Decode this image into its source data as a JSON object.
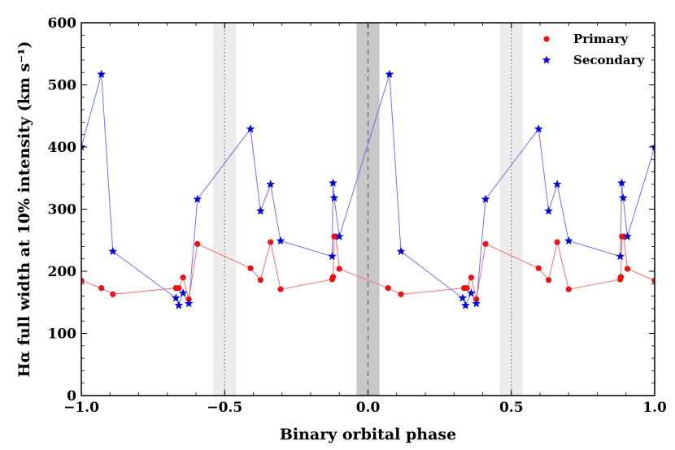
{
  "chart_data": {
    "type": "line",
    "xlabel": "Binary orbital phase",
    "ylabel": "Hα full width at 10% intensity (km s⁻¹)",
    "xlim": [
      -1.0,
      1.0
    ],
    "ylim": [
      0,
      600
    ],
    "x_ticks": [
      -1.0,
      -0.5,
      0.0,
      0.5,
      1.0
    ],
    "x_tick_labels": [
      "−1.0",
      "−0.5",
      "0.0",
      "0.5",
      "1.0"
    ],
    "y_ticks": [
      0,
      100,
      200,
      300,
      400,
      500,
      600
    ],
    "y_tick_labels": [
      "0",
      "100",
      "200",
      "300",
      "400",
      "500",
      "600"
    ],
    "legend_position": "top-right",
    "shaded_regions": [
      {
        "x0": -0.54,
        "x1": -0.46,
        "shade": "light"
      },
      {
        "x0": -0.04,
        "x1": 0.04,
        "shade": "dark"
      },
      {
        "x0": 0.46,
        "x1": 0.54,
        "shade": "light"
      }
    ],
    "vertical_lines": [
      {
        "x": -0.5,
        "style": "dotted"
      },
      {
        "x": 0.0,
        "style": "dashed"
      },
      {
        "x": 0.5,
        "style": "dotted"
      }
    ],
    "series": [
      {
        "name": "Primary",
        "color": "#ee1111",
        "line_color": "#f07070",
        "marker": "circle",
        "x": [
          -1.0,
          -0.93,
          -0.89,
          -0.67,
          -0.66,
          -0.645,
          -0.625,
          -0.595,
          -0.41,
          -0.375,
          -0.34,
          -0.305,
          -0.125,
          -0.122,
          -0.118,
          -0.112,
          -0.1,
          0.07,
          0.115,
          0.335,
          0.345,
          0.36,
          0.378,
          0.41,
          0.595,
          0.63,
          0.66,
          0.7,
          0.88,
          0.882,
          0.886,
          0.892,
          0.905,
          1.0
        ],
        "y": [
          185,
          173,
          163,
          173,
          173,
          190,
          155,
          244,
          205,
          186,
          247,
          171,
          187,
          191,
          256,
          256,
          204,
          173,
          163,
          173,
          173,
          190,
          155,
          244,
          205,
          186,
          247,
          171,
          187,
          191,
          256,
          256,
          204,
          185
        ]
      },
      {
        "name": "Secondary",
        "color": "#0000dd",
        "line_color": "#7070ee",
        "marker": "star",
        "x": [
          -1.0,
          -0.93,
          -0.89,
          -0.67,
          -0.66,
          -0.645,
          -0.625,
          -0.595,
          -0.41,
          -0.375,
          -0.34,
          -0.305,
          -0.125,
          -0.122,
          -0.118,
          -0.1,
          0.075,
          0.115,
          0.33,
          0.34,
          0.36,
          0.378,
          0.41,
          0.595,
          0.63,
          0.66,
          0.7,
          0.88,
          0.885,
          0.89,
          0.905,
          1.0
        ],
        "y": [
          400,
          517,
          232,
          157,
          145,
          165,
          148,
          316,
          429,
          297,
          340,
          249,
          224,
          342,
          318,
          256,
          517,
          232,
          157,
          145,
          165,
          148,
          316,
          429,
          297,
          340,
          249,
          224,
          342,
          318,
          256,
          400
        ]
      }
    ]
  }
}
